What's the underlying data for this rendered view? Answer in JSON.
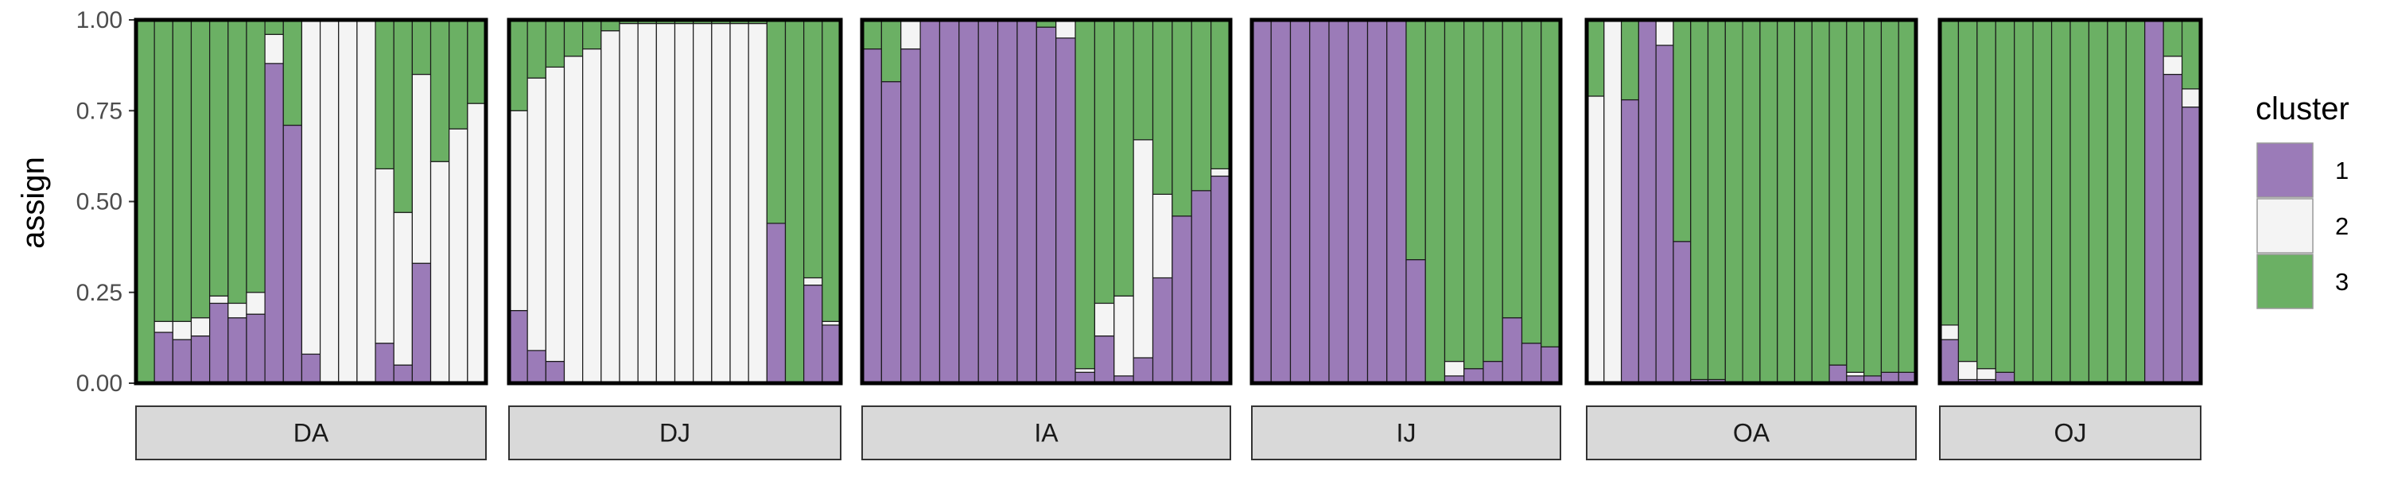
{
  "chart_data": {
    "type": "bar",
    "stacked": true,
    "ylabel": "assign",
    "ylim": [
      0,
      1
    ],
    "yticks": [
      "0.00",
      "0.25",
      "0.50",
      "0.75",
      "1.00"
    ],
    "legend": {
      "title": "cluster",
      "placement": "right",
      "entries": [
        "1",
        "2",
        "3"
      ]
    },
    "colors": {
      "1": "#9b7bb8",
      "2": "#f4f4f4",
      "3": "#6bb064"
    },
    "facets": [
      {
        "label": "DA",
        "bars": [
          [
            0.0,
            0.0,
            1.0
          ],
          [
            0.14,
            0.03,
            0.83
          ],
          [
            0.12,
            0.05,
            0.83
          ],
          [
            0.13,
            0.05,
            0.82
          ],
          [
            0.22,
            0.02,
            0.76
          ],
          [
            0.18,
            0.04,
            0.78
          ],
          [
            0.19,
            0.06,
            0.75
          ],
          [
            0.88,
            0.08,
            0.04
          ],
          [
            0.71,
            0.0,
            0.29
          ],
          [
            0.08,
            0.92,
            0.0
          ],
          [
            0.0,
            1.0,
            0.0
          ],
          [
            0.0,
            1.0,
            0.0
          ],
          [
            0.0,
            1.0,
            0.0
          ],
          [
            0.11,
            0.48,
            0.41
          ],
          [
            0.05,
            0.42,
            0.53
          ],
          [
            0.33,
            0.52,
            0.15
          ],
          [
            0.0,
            0.61,
            0.39
          ],
          [
            0.0,
            0.7,
            0.3
          ],
          [
            0.0,
            0.77,
            0.23
          ]
        ]
      },
      {
        "label": "DJ",
        "bars": [
          [
            0.2,
            0.55,
            0.25
          ],
          [
            0.09,
            0.75,
            0.16
          ],
          [
            0.06,
            0.81,
            0.13
          ],
          [
            0.0,
            0.9,
            0.1
          ],
          [
            0.0,
            0.92,
            0.08
          ],
          [
            0.0,
            0.97,
            0.03
          ],
          [
            0.0,
            0.99,
            0.01
          ],
          [
            0.0,
            0.99,
            0.01
          ],
          [
            0.0,
            0.99,
            0.01
          ],
          [
            0.0,
            0.99,
            0.01
          ],
          [
            0.0,
            0.99,
            0.01
          ],
          [
            0.0,
            0.99,
            0.01
          ],
          [
            0.0,
            0.99,
            0.01
          ],
          [
            0.0,
            0.99,
            0.01
          ],
          [
            0.44,
            0.0,
            0.56
          ],
          [
            0.0,
            0.0,
            1.0
          ],
          [
            0.27,
            0.02,
            0.71
          ],
          [
            0.16,
            0.01,
            0.83
          ]
        ]
      },
      {
        "label": "IA",
        "bars": [
          [
            0.92,
            0.0,
            0.08
          ],
          [
            0.83,
            0.0,
            0.17
          ],
          [
            0.92,
            0.08,
            0.0
          ],
          [
            1.0,
            0.0,
            0.0
          ],
          [
            1.0,
            0.0,
            0.0
          ],
          [
            1.0,
            0.0,
            0.0
          ],
          [
            1.0,
            0.0,
            0.0
          ],
          [
            1.0,
            0.0,
            0.0
          ],
          [
            1.0,
            0.0,
            0.0
          ],
          [
            0.98,
            0.0,
            0.02
          ],
          [
            0.95,
            0.05,
            0.0
          ],
          [
            0.03,
            0.01,
            0.96
          ],
          [
            0.13,
            0.09,
            0.78
          ],
          [
            0.02,
            0.22,
            0.76
          ],
          [
            0.07,
            0.6,
            0.33
          ],
          [
            0.29,
            0.23,
            0.48
          ],
          [
            0.46,
            0.0,
            0.54
          ],
          [
            0.53,
            0.0,
            0.47
          ],
          [
            0.57,
            0.02,
            0.41
          ]
        ]
      },
      {
        "label": "IJ",
        "bars": [
          [
            1.0,
            0.0,
            0.0
          ],
          [
            1.0,
            0.0,
            0.0
          ],
          [
            1.0,
            0.0,
            0.0
          ],
          [
            1.0,
            0.0,
            0.0
          ],
          [
            1.0,
            0.0,
            0.0
          ],
          [
            1.0,
            0.0,
            0.0
          ],
          [
            1.0,
            0.0,
            0.0
          ],
          [
            1.0,
            0.0,
            0.0
          ],
          [
            0.34,
            0.0,
            0.66
          ],
          [
            0.0,
            0.0,
            1.0
          ],
          [
            0.02,
            0.04,
            0.94
          ],
          [
            0.04,
            0.0,
            0.96
          ],
          [
            0.06,
            0.0,
            0.94
          ],
          [
            0.18,
            0.0,
            0.82
          ],
          [
            0.11,
            0.0,
            0.89
          ],
          [
            0.1,
            0.0,
            0.9
          ]
        ]
      },
      {
        "label": "OA",
        "bars": [
          [
            0.0,
            0.79,
            0.21
          ],
          [
            0.0,
            1.0,
            0.0
          ],
          [
            0.78,
            0.0,
            0.22
          ],
          [
            1.0,
            0.0,
            0.0
          ],
          [
            0.93,
            0.07,
            0.0
          ],
          [
            0.39,
            0.0,
            0.61
          ],
          [
            0.01,
            0.0,
            0.99
          ],
          [
            0.01,
            0.0,
            0.99
          ],
          [
            0.0,
            0.0,
            1.0
          ],
          [
            0.0,
            0.0,
            1.0
          ],
          [
            0.0,
            0.0,
            1.0
          ],
          [
            0.0,
            0.0,
            1.0
          ],
          [
            0.0,
            0.0,
            1.0
          ],
          [
            0.0,
            0.0,
            1.0
          ],
          [
            0.05,
            0.0,
            0.95
          ],
          [
            0.02,
            0.01,
            0.97
          ],
          [
            0.02,
            0.0,
            0.98
          ],
          [
            0.03,
            0.0,
            0.97
          ],
          [
            0.03,
            0.0,
            0.97
          ]
        ]
      },
      {
        "label": "OJ",
        "bars": [
          [
            0.12,
            0.04,
            0.84
          ],
          [
            0.01,
            0.05,
            0.94
          ],
          [
            0.01,
            0.03,
            0.96
          ],
          [
            0.03,
            0.0,
            0.97
          ],
          [
            0.0,
            0.0,
            1.0
          ],
          [
            0.0,
            0.0,
            1.0
          ],
          [
            0.0,
            0.0,
            1.0
          ],
          [
            0.0,
            0.0,
            1.0
          ],
          [
            0.0,
            0.0,
            1.0
          ],
          [
            0.0,
            0.0,
            1.0
          ],
          [
            0.0,
            0.0,
            1.0
          ],
          [
            1.0,
            0.0,
            0.0
          ],
          [
            0.85,
            0.05,
            0.1
          ],
          [
            0.76,
            0.05,
            0.19
          ]
        ]
      }
    ]
  }
}
